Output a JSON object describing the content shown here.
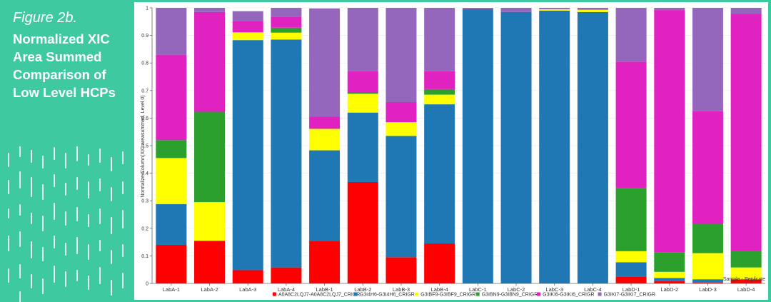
{
  "page": {
    "figure_label": "Figure 2b.",
    "figure_title": "Normalized XIC Area Summed Comparison of Low Level HCPs"
  },
  "colors": {
    "background": "#3ec9a0",
    "panel": "#ffffff"
  },
  "chart_data": {
    "type": "bar",
    "stacked": true,
    "title": "",
    "xlabel": "Sample - Replicate",
    "ylabel": "Normalize Column(XIC areasummed, Level 0)",
    "ylim": [
      0,
      1
    ],
    "yticks": [
      0,
      0.1,
      0.2,
      0.3,
      0.4,
      0.5,
      0.6,
      0.7,
      0.8,
      0.9,
      1
    ],
    "ytick_labels": [
      "0",
      "0.1",
      "0.2",
      "0.3",
      "0.4",
      "0.5",
      "0.6",
      "0.7",
      "0.8",
      "0.9",
      "1"
    ],
    "legend_position": "bottom",
    "categories": [
      "LabA-1",
      "LabA-2",
      "LabA-3",
      "LabA-4",
      "LabB-1",
      "LabB-2",
      "LabB-3",
      "LabB-4",
      "LabC-1",
      "LabC-2",
      "LabC-3",
      "LabC-4",
      "LabD-1",
      "LabD-2",
      "LabD-3",
      "LabD-4"
    ],
    "series": [
      {
        "name": "A0A8C2LQJ7-A0A8C2LQJ7_CRIGR",
        "color": "#ff0000",
        "values": [
          0.14,
          0.155,
          0.048,
          0.058,
          0.155,
          0.368,
          0.095,
          0.145,
          0.0,
          0.0,
          0.0,
          0.0,
          0.025,
          0.008,
          0.003,
          0.015
        ]
      },
      {
        "name": "G3I4H6-G3I4H6_CRIGR",
        "color": "#1f77b4",
        "values": [
          0.148,
          0.0,
          0.835,
          0.827,
          0.328,
          0.252,
          0.44,
          0.505,
          0.995,
          0.985,
          0.99,
          0.985,
          0.052,
          0.012,
          0.012,
          0.0
        ]
      },
      {
        "name": "G3IBF9-G3IBF9_CRIGR",
        "color": "#ffff00",
        "values": [
          0.167,
          0.14,
          0.028,
          0.025,
          0.078,
          0.068,
          0.05,
          0.035,
          0.0,
          0.0,
          0.005,
          0.008,
          0.04,
          0.022,
          0.095,
          0.043
        ]
      },
      {
        "name": "G3IBN9-G3IBN9_CRIGR",
        "color": "#2ca02c",
        "values": [
          0.065,
          0.328,
          0.0,
          0.018,
          0.0,
          0.005,
          0.0,
          0.02,
          0.0,
          0.0,
          0.0,
          0.0,
          0.228,
          0.07,
          0.105,
          0.06
        ]
      },
      {
        "name": "G3IKI6-G3IKI6_CRIGR",
        "color": "#e022c0",
        "values": [
          0.31,
          0.362,
          0.042,
          0.04,
          0.045,
          0.077,
          0.073,
          0.065,
          0.0,
          0.0,
          0.0,
          0.0,
          0.46,
          0.88,
          0.41,
          0.86
        ]
      },
      {
        "name": "G3IKI7-G3IKI7_CRIGR",
        "color": "#9467bd",
        "values": [
          0.17,
          0.015,
          0.035,
          0.032,
          0.392,
          0.23,
          0.342,
          0.23,
          0.005,
          0.015,
          0.005,
          0.007,
          0.195,
          0.008,
          0.375,
          0.022
        ]
      }
    ]
  }
}
